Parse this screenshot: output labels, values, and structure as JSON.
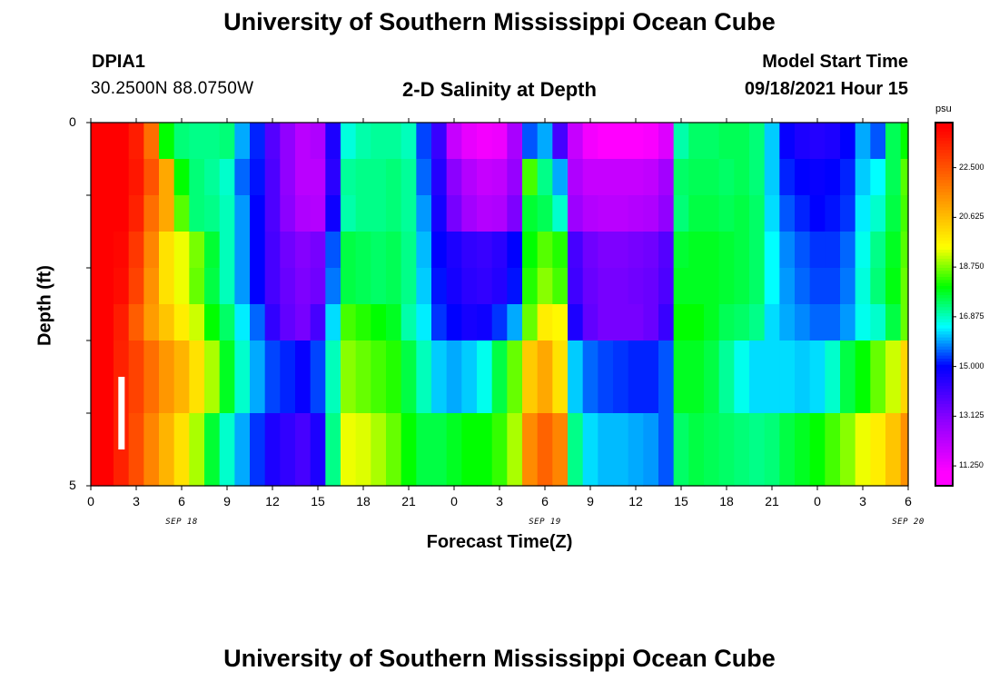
{
  "header": {
    "title_top": "University of Southern Mississippi Ocean Cube",
    "title_bottom": "University of Southern Mississippi Ocean Cube",
    "station_id": "DPIA1",
    "station_coords": "30.2500N  88.0750W",
    "plot_title": "2-D Salinity at Depth",
    "model_start_label": "Model Start Time",
    "model_start_value": "09/18/2021 Hour 15"
  },
  "chart_data": {
    "type": "heatmap",
    "title": "2-D Salinity at Depth",
    "xlabel": "Forecast Time(Z)",
    "ylabel": "Depth (ft)",
    "x_tick_labels": [
      "0",
      "3",
      "6",
      "9",
      "12",
      "15",
      "18",
      "21",
      "0",
      "3",
      "6",
      "9",
      "12",
      "15",
      "18",
      "21",
      "0",
      "3",
      "6"
    ],
    "x_range_hours": [
      0,
      54
    ],
    "date_labels": [
      "SEP 18",
      "SEP 19",
      "SEP 20"
    ],
    "y_tick_labels": [
      "0",
      "5"
    ],
    "ylim": [
      0,
      5
    ],
    "y_inverted": true,
    "depth_bands_ft": [
      0.25,
      0.75,
      1.25,
      1.75,
      2.25,
      2.75,
      3.25,
      3.75,
      4.25,
      4.75
    ],
    "colorbar": {
      "unit": "psu",
      "tick_labels": [
        "22.500",
        "20.625",
        "18.750",
        "16.875",
        "15.000",
        "13.125",
        "11.250"
      ],
      "range": [
        10.5,
        24.2
      ]
    },
    "current_time_marker_hour": 2,
    "hours": [
      0,
      1,
      2,
      3,
      4,
      5,
      6,
      7,
      8,
      9,
      10,
      11,
      12,
      13,
      14,
      15,
      16,
      17,
      18,
      19,
      20,
      21,
      22,
      23,
      24,
      25,
      26,
      27,
      28,
      29,
      30,
      31,
      32,
      33,
      34,
      35,
      36,
      37,
      38,
      39,
      40,
      41,
      42,
      43,
      44,
      45,
      46,
      47,
      48,
      49,
      50,
      51,
      52,
      53,
      54
    ],
    "salinity_psu": [
      [
        24.5,
        24.4,
        24.2,
        23.5,
        22.0,
        18.0,
        17.3,
        17.2,
        17.2,
        17.3,
        16.0,
        15.2,
        13.8,
        12.9,
        12.2,
        12.4,
        14.6,
        16.7,
        17.0,
        17.1,
        17.1,
        16.9,
        15.4,
        14.2,
        12.0,
        11.4,
        11.2,
        11.3,
        12.5,
        15.5,
        16.0,
        14.0,
        12.0,
        11.2,
        11.0,
        11.0,
        11.0,
        11.1,
        11.6,
        17.0,
        17.4,
        17.4,
        17.5,
        17.5,
        17.3,
        16.2,
        14.9,
        14.6,
        14.5,
        14.6,
        15.0,
        16.0,
        15.5,
        17.5,
        18.0
      ],
      [
        24.5,
        24.4,
        24.2,
        23.6,
        22.5,
        21.0,
        18.0,
        17.3,
        17.1,
        16.8,
        15.6,
        15.1,
        13.9,
        12.9,
        12.2,
        12.2,
        14.4,
        17.1,
        17.2,
        17.2,
        17.3,
        17.1,
        15.6,
        14.5,
        13.0,
        12.3,
        12.0,
        12.1,
        12.8,
        18.4,
        17.2,
        16.0,
        12.4,
        12.0,
        12.0,
        12.0,
        12.0,
        12.1,
        12.6,
        17.4,
        17.5,
        17.5,
        17.4,
        17.5,
        17.3,
        16.2,
        15.2,
        15.0,
        14.9,
        15.0,
        15.2,
        16.2,
        16.5,
        17.5,
        18.5
      ],
      [
        24.5,
        24.3,
        24.0,
        23.4,
        22.0,
        21.0,
        18.5,
        17.3,
        17.2,
        16.9,
        15.9,
        15.0,
        13.9,
        13.0,
        12.4,
        12.3,
        14.8,
        17.0,
        17.2,
        17.2,
        17.3,
        17.1,
        15.9,
        14.7,
        13.3,
        12.6,
        12.3,
        12.4,
        13.2,
        17.7,
        17.5,
        16.8,
        12.7,
        12.3,
        12.2,
        12.2,
        12.3,
        12.4,
        12.9,
        17.3,
        17.6,
        17.6,
        17.5,
        17.6,
        17.4,
        16.3,
        15.5,
        15.2,
        15.0,
        15.1,
        15.3,
        16.4,
        16.8,
        17.6,
        18.4
      ],
      [
        24.5,
        24.3,
        23.9,
        23.0,
        21.6,
        20.0,
        19.4,
        18.7,
        17.7,
        16.9,
        15.9,
        15.0,
        14.0,
        13.4,
        13.1,
        13.3,
        15.5,
        17.6,
        17.5,
        17.4,
        17.5,
        17.2,
        16.1,
        15.0,
        14.6,
        14.3,
        14.2,
        14.4,
        15.0,
        18.0,
        18.5,
        18.2,
        14.0,
        13.4,
        13.2,
        13.2,
        13.3,
        13.4,
        13.8,
        17.7,
        17.8,
        17.8,
        17.7,
        17.6,
        17.4,
        16.5,
        15.8,
        15.5,
        15.3,
        15.3,
        15.6,
        16.6,
        17.2,
        17.8,
        18.5
      ],
      [
        24.5,
        24.2,
        23.8,
        22.8,
        21.4,
        20.0,
        19.4,
        18.6,
        17.6,
        16.9,
        15.9,
        15.0,
        14.0,
        13.5,
        13.2,
        13.4,
        15.7,
        17.6,
        17.5,
        17.4,
        17.5,
        17.2,
        16.2,
        15.1,
        14.7,
        14.4,
        14.3,
        14.5,
        15.1,
        18.2,
        18.8,
        18.4,
        14.1,
        13.5,
        13.3,
        13.3,
        13.4,
        13.5,
        13.9,
        17.8,
        17.8,
        17.8,
        17.7,
        17.6,
        17.4,
        16.5,
        15.9,
        15.6,
        15.4,
        15.4,
        15.7,
        16.7,
        17.3,
        17.9,
        18.6
      ],
      [
        24.5,
        24.2,
        23.5,
        22.3,
        21.2,
        20.5,
        19.8,
        19.2,
        18.0,
        17.4,
        16.4,
        15.6,
        14.3,
        13.6,
        13.3,
        14.0,
        16.3,
        18.4,
        18.2,
        18.0,
        17.8,
        17.0,
        16.4,
        15.3,
        15.0,
        14.7,
        14.8,
        15.3,
        16.0,
        18.6,
        19.8,
        19.6,
        14.6,
        13.6,
        13.3,
        13.3,
        13.3,
        13.5,
        14.2,
        18.0,
        18.0,
        17.8,
        17.5,
        17.4,
        17.2,
        16.3,
        16.0,
        15.8,
        15.6,
        15.6,
        15.9,
        16.6,
        16.8,
        17.6,
        18.6
      ],
      [
        24.5,
        24.0,
        23.4,
        22.8,
        22.0,
        21.3,
        20.8,
        20.0,
        19.0,
        17.8,
        16.8,
        16.0,
        15.4,
        15.2,
        14.9,
        15.4,
        16.9,
        18.8,
        18.6,
        18.4,
        18.2,
        17.6,
        16.9,
        16.2,
        16.0,
        16.2,
        16.6,
        17.6,
        18.6,
        20.4,
        21.0,
        20.0,
        16.2,
        15.6,
        15.4,
        15.3,
        15.2,
        15.2,
        15.5,
        17.8,
        17.8,
        17.6,
        17.1,
        16.6,
        16.3,
        16.3,
        16.3,
        16.2,
        16.3,
        16.8,
        17.6,
        18.0,
        18.6,
        19.2,
        20.2
      ],
      [
        24.5,
        24.0,
        23.4,
        22.8,
        22.0,
        21.3,
        20.8,
        20.0,
        19.0,
        17.8,
        16.8,
        16.0,
        15.4,
        15.2,
        14.9,
        15.4,
        16.9,
        18.8,
        18.6,
        18.4,
        18.2,
        17.6,
        16.9,
        16.2,
        16.0,
        16.2,
        16.6,
        17.6,
        18.6,
        20.4,
        21.0,
        20.0,
        16.2,
        15.6,
        15.4,
        15.3,
        15.2,
        15.2,
        15.5,
        17.8,
        17.8,
        17.6,
        17.1,
        16.6,
        16.3,
        16.3,
        16.3,
        16.2,
        16.3,
        16.8,
        17.6,
        18.0,
        18.6,
        19.2,
        20.2
      ],
      [
        24.5,
        24.0,
        23.4,
        22.6,
        21.6,
        20.8,
        20.0,
        19.0,
        17.7,
        16.8,
        16.0,
        15.3,
        14.6,
        14.3,
        14.0,
        14.6,
        17.2,
        19.4,
        19.3,
        19.0,
        18.6,
        18.0,
        17.6,
        17.6,
        17.8,
        18.0,
        18.0,
        18.3,
        19.0,
        21.5,
        22.2,
        21.6,
        17.2,
        16.3,
        16.1,
        16.1,
        16.0,
        15.9,
        15.5,
        17.4,
        17.6,
        17.5,
        17.4,
        17.3,
        17.2,
        17.3,
        17.6,
        17.8,
        18.0,
        18.4,
        18.8,
        19.4,
        19.8,
        20.5,
        21.4
      ],
      [
        24.5,
        24.0,
        23.4,
        22.6,
        21.6,
        20.8,
        20.0,
        19.0,
        17.7,
        16.8,
        16.0,
        15.3,
        14.6,
        14.3,
        14.0,
        14.6,
        17.2,
        19.4,
        19.3,
        19.0,
        18.6,
        18.0,
        17.6,
        17.6,
        17.8,
        18.0,
        18.0,
        18.3,
        19.0,
        21.5,
        22.2,
        21.6,
        17.2,
        16.3,
        16.1,
        16.1,
        16.0,
        15.9,
        15.5,
        17.4,
        17.6,
        17.5,
        17.4,
        17.3,
        17.2,
        17.3,
        17.6,
        17.8,
        18.0,
        18.4,
        18.8,
        19.4,
        19.8,
        20.5,
        21.4
      ]
    ]
  }
}
